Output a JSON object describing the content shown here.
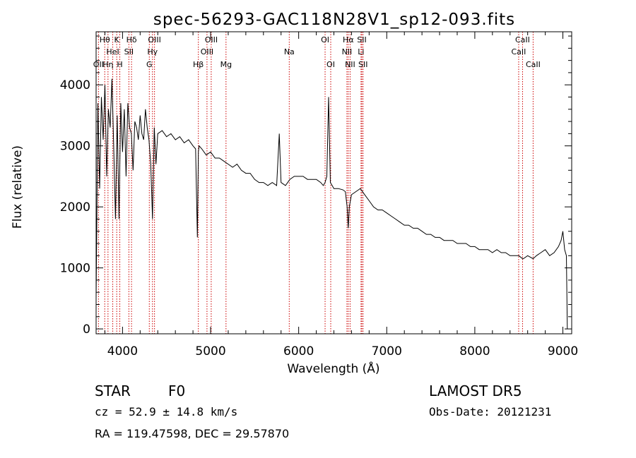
{
  "chart_data": {
    "type": "line",
    "title": "spec-56293-GAC118N28V1_sp12-093.fits",
    "xlabel": "Wavelength (Å)",
    "ylabel": "Flux (relative)",
    "xlim": [
      3700,
      9100
    ],
    "ylim": [
      -80,
      4870
    ],
    "xticks": [
      4000,
      5000,
      6000,
      7000,
      8000,
      9000
    ],
    "yticks": [
      0,
      1000,
      2000,
      3000,
      4000
    ],
    "line_color": "#000000",
    "marker_color": "#cc0000",
    "spectrum": {
      "x": [
        3700,
        3720,
        3740,
        3760,
        3780,
        3800,
        3820,
        3840,
        3860,
        3880,
        3900,
        3920,
        3940,
        3960,
        3980,
        4000,
        4020,
        4040,
        4060,
        4080,
        4100,
        4120,
        4140,
        4160,
        4180,
        4200,
        4220,
        4240,
        4260,
        4280,
        4300,
        4320,
        4340,
        4360,
        4380,
        4400,
        4450,
        4500,
        4550,
        4600,
        4650,
        4700,
        4750,
        4800,
        4830,
        4850,
        4861,
        4870,
        4900,
        4950,
        5000,
        5050,
        5100,
        5150,
        5200,
        5250,
        5300,
        5350,
        5400,
        5450,
        5500,
        5550,
        5600,
        5650,
        5700,
        5750,
        5780,
        5800,
        5850,
        5900,
        5950,
        6000,
        6050,
        6100,
        6150,
        6200,
        6250,
        6280,
        6300,
        6320,
        6340,
        6360,
        6380,
        6400,
        6450,
        6500,
        6530,
        6550,
        6563,
        6575,
        6600,
        6650,
        6700,
        6750,
        6800,
        6850,
        6900,
        6950,
        7000,
        7050,
        7100,
        7150,
        7200,
        7250,
        7300,
        7350,
        7400,
        7450,
        7500,
        7550,
        7600,
        7650,
        7700,
        7750,
        7800,
        7850,
        7900,
        7950,
        8000,
        8050,
        8100,
        8150,
        8200,
        8250,
        8300,
        8350,
        8400,
        8450,
        8500,
        8542,
        8550,
        8600,
        8662,
        8700,
        8750,
        8800,
        8850,
        8900,
        8950,
        8980,
        9000,
        9020,
        9040,
        9050
      ],
      "y": [
        500,
        3700,
        2300,
        3800,
        3100,
        4000,
        2500,
        3600,
        3300,
        4100,
        3000,
        1800,
        3500,
        1800,
        3700,
        2900,
        3600,
        2500,
        3700,
        3300,
        3200,
        2600,
        3400,
        3300,
        3100,
        3500,
        3200,
        3100,
        3600,
        3300,
        3100,
        2700,
        1800,
        3300,
        2700,
        3200,
        3250,
        3150,
        3200,
        3100,
        3150,
        3050,
        3100,
        3000,
        2950,
        1500,
        2900,
        3000,
        2950,
        2850,
        2900,
        2800,
        2800,
        2750,
        2700,
        2650,
        2700,
        2600,
        2550,
        2550,
        2450,
        2400,
        2400,
        2350,
        2400,
        2350,
        3200,
        2400,
        2350,
        2450,
        2500,
        2500,
        2500,
        2450,
        2450,
        2450,
        2400,
        2350,
        2400,
        2500,
        3800,
        2400,
        2350,
        2300,
        2300,
        2280,
        2250,
        2000,
        1650,
        2000,
        2200,
        2250,
        2300,
        2200,
        2100,
        2000,
        1950,
        1950,
        1900,
        1850,
        1800,
        1750,
        1700,
        1700,
        1650,
        1650,
        1600,
        1550,
        1550,
        1500,
        1500,
        1450,
        1450,
        1450,
        1400,
        1400,
        1400,
        1350,
        1350,
        1300,
        1300,
        1300,
        1250,
        1300,
        1250,
        1250,
        1200,
        1200,
        1200,
        1150,
        1150,
        1200,
        1150,
        1200,
        1250,
        1300,
        1200,
        1250,
        1350,
        1450,
        1600,
        1300,
        1200,
        0
      ]
    },
    "line_markers": [
      {
        "label": "OII",
        "wavelength": 3727,
        "row": 2
      },
      {
        "label": "Hθ",
        "wavelength": 3798,
        "row": 0
      },
      {
        "label": "Hη",
        "wavelength": 3835,
        "row": 2
      },
      {
        "label": "K",
        "wavelength": 3934,
        "row": 0
      },
      {
        "label": "HeI",
        "wavelength": 3889,
        "row": 1
      },
      {
        "label": "H",
        "wavelength": 3969,
        "row": 2
      },
      {
        "label": "Hδ",
        "wavelength": 4102,
        "row": 0
      },
      {
        "label": "SII",
        "wavelength": 4072,
        "row": 1
      },
      {
        "label": "OIII",
        "wavelength": 4363,
        "row": 0
      },
      {
        "label": "Hγ",
        "wavelength": 4340,
        "row": 1
      },
      {
        "label": "G",
        "wavelength": 4304,
        "row": 2
      },
      {
        "label": "Hβ",
        "wavelength": 4861,
        "row": 2
      },
      {
        "label": "OIII",
        "wavelength": 5007,
        "row": 0
      },
      {
        "label": "OIII",
        "wavelength": 4959,
        "row": 1
      },
      {
        "label": "Mg",
        "wavelength": 5175,
        "row": 2
      },
      {
        "label": "Na",
        "wavelength": 5893,
        "row": 1
      },
      {
        "label": "OI",
        "wavelength": 6300,
        "row": 0
      },
      {
        "label": "OI",
        "wavelength": 6364,
        "row": 2
      },
      {
        "label": "Hα",
        "wavelength": 6563,
        "row": 0
      },
      {
        "label": "NII",
        "wavelength": 6548,
        "row": 1
      },
      {
        "label": "NII",
        "wavelength": 6584,
        "row": 2
      },
      {
        "label": "SII",
        "wavelength": 6717,
        "row": 0
      },
      {
        "label": "Li",
        "wavelength": 6708,
        "row": 1
      },
      {
        "label": "SII",
        "wavelength": 6731,
        "row": 2
      },
      {
        "label": "CaII",
        "wavelength": 8542,
        "row": 0
      },
      {
        "label": "CaII",
        "wavelength": 8498,
        "row": 1
      },
      {
        "label": "CaII",
        "wavelength": 8662,
        "row": 2
      }
    ]
  },
  "info": {
    "object_class": "STAR",
    "subclass": "F0",
    "survey": "LAMOST DR5",
    "redshift": "cz = 52.9 ± 14.8 km/s",
    "obs_date": "Obs-Date: 20121231",
    "coords": "RA = 119.47598, DEC =  29.57870"
  }
}
